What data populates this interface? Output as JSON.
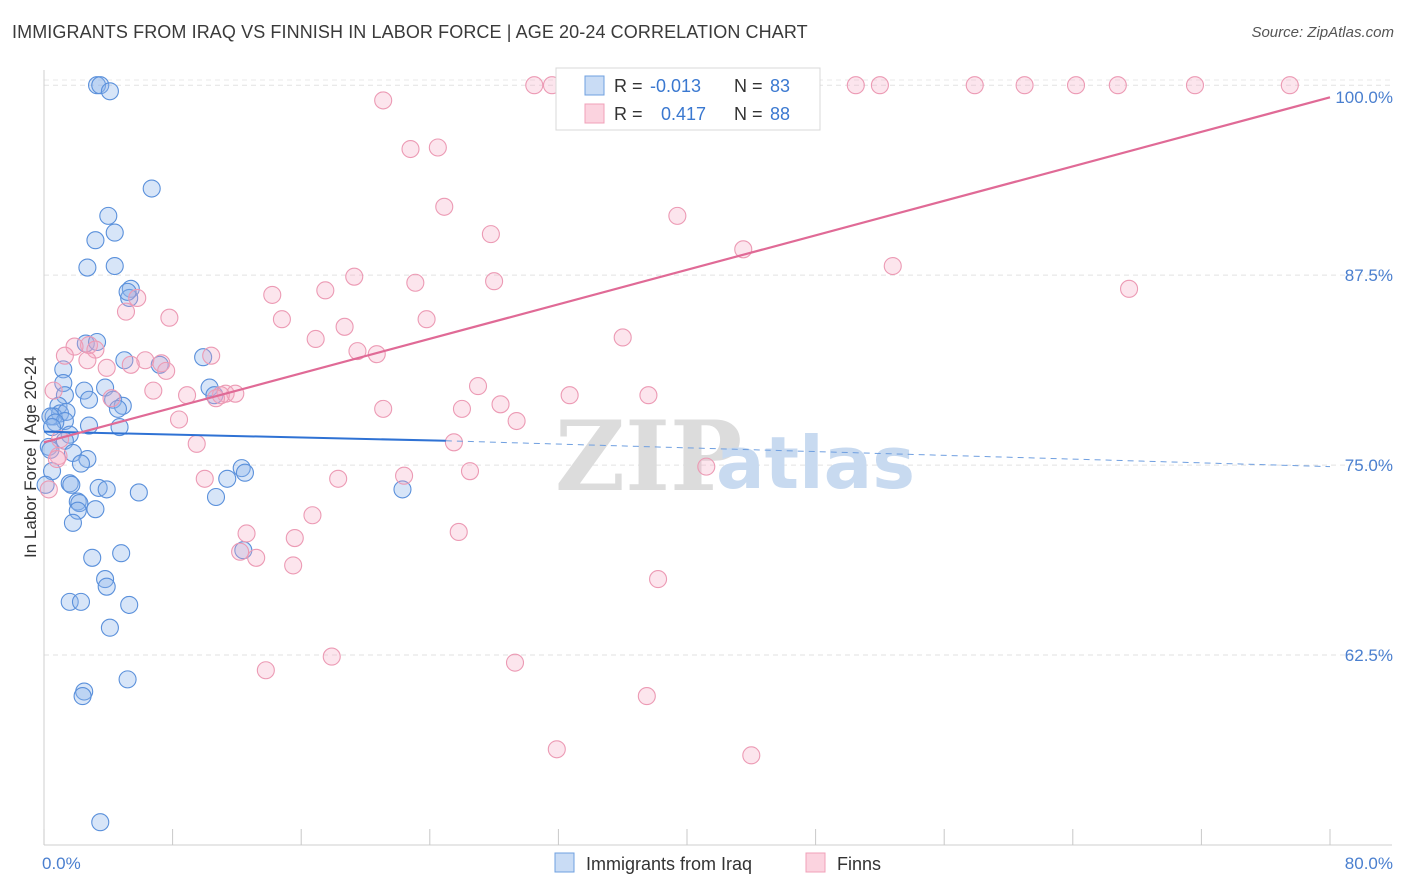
{
  "title": "IMMIGRANTS FROM IRAQ VS FINNISH IN LABOR FORCE | AGE 20-24 CORRELATION CHART",
  "source": "Source: ZipAtlas.com",
  "watermark": {
    "zip": "ZIP",
    "atlas": "atlas"
  },
  "legend_top": {
    "rows": [
      {
        "r_label": "R =",
        "r_value": "-0.013",
        "n_label": "N =",
        "n_value": "83",
        "color": "#6fa0e0"
      },
      {
        "r_label": "R =",
        "r_value": "0.417",
        "n_label": "N =",
        "n_value": "88",
        "color": "#f0a0b8"
      }
    ]
  },
  "legend_bottom": [
    {
      "label": "Immigrants from Iraq",
      "color": "#6fa0e0"
    },
    {
      "label": "Finns",
      "color": "#f0a0b8"
    }
  ],
  "chart_data": {
    "type": "scatter",
    "title": "IMMIGRANTS FROM IRAQ VS FINNISH IN LABOR FORCE | AGE 20-24 CORRELATION CHART",
    "xlabel": "",
    "ylabel": "In Labor Force | Age 20-24",
    "xlim": [
      0,
      80
    ],
    "ylim": [
      50,
      101
    ],
    "x_tick_labels": [
      "0.0%",
      "80.0%"
    ],
    "y_ticks": [
      62.5,
      75.0,
      87.5,
      100.0
    ],
    "y_tick_labels": [
      "62.5%",
      "75.0%",
      "87.5%",
      "100.0%"
    ],
    "grid": true,
    "series": [
      {
        "name": "Immigrants from Iraq",
        "color": "#6fa0e0",
        "trend": {
          "x": [
            0,
            25
          ],
          "y": [
            77.2,
            76.6
          ],
          "dashed_to_x": 80,
          "dashed_y_end": 74.9
        },
        "points": [
          [
            3.3,
            100.0
          ],
          [
            3.5,
            100.0
          ],
          [
            4.1,
            99.6
          ],
          [
            6.7,
            93.2
          ],
          [
            4.0,
            91.4
          ],
          [
            4.4,
            90.3
          ],
          [
            3.2,
            89.8
          ],
          [
            2.7,
            88.0
          ],
          [
            4.4,
            88.1
          ],
          [
            5.4,
            86.6
          ],
          [
            5.3,
            86.0
          ],
          [
            5.2,
            86.4
          ],
          [
            2.6,
            83.0
          ],
          [
            3.3,
            83.1
          ],
          [
            5.0,
            81.9
          ],
          [
            7.2,
            81.6
          ],
          [
            9.9,
            82.1
          ],
          [
            1.2,
            81.3
          ],
          [
            1.2,
            80.4
          ],
          [
            2.5,
            79.9
          ],
          [
            3.8,
            80.1
          ],
          [
            1.3,
            79.6
          ],
          [
            10.3,
            80.1
          ],
          [
            10.6,
            79.6
          ],
          [
            4.3,
            79.3
          ],
          [
            2.8,
            79.3
          ],
          [
            4.9,
            78.9
          ],
          [
            0.9,
            78.9
          ],
          [
            4.6,
            78.7
          ],
          [
            1.0,
            78.4
          ],
          [
            0.6,
            78.2
          ],
          [
            1.4,
            78.5
          ],
          [
            0.4,
            78.2
          ],
          [
            1.3,
            77.9
          ],
          [
            0.7,
            77.8
          ],
          [
            2.8,
            77.6
          ],
          [
            0.5,
            77.5
          ],
          [
            4.7,
            77.5
          ],
          [
            1.6,
            77.0
          ],
          [
            1.3,
            76.6
          ],
          [
            0.3,
            76.2
          ],
          [
            0.4,
            76.0
          ],
          [
            1.8,
            75.8
          ],
          [
            2.7,
            75.4
          ],
          [
            2.3,
            75.1
          ],
          [
            12.3,
            74.8
          ],
          [
            0.5,
            74.6
          ],
          [
            12.5,
            74.5
          ],
          [
            11.4,
            74.1
          ],
          [
            1.6,
            73.8
          ],
          [
            1.7,
            73.7
          ],
          [
            3.4,
            73.5
          ],
          [
            3.9,
            73.4
          ],
          [
            0.1,
            73.7
          ],
          [
            5.9,
            73.2
          ],
          [
            10.7,
            72.9
          ],
          [
            22.3,
            73.4
          ],
          [
            2.1,
            72.6
          ],
          [
            2.2,
            72.5
          ],
          [
            2.1,
            72.0
          ],
          [
            3.2,
            72.1
          ],
          [
            1.8,
            71.2
          ],
          [
            12.4,
            69.4
          ],
          [
            4.8,
            69.2
          ],
          [
            3.0,
            68.9
          ],
          [
            3.8,
            67.5
          ],
          [
            3.9,
            67.0
          ],
          [
            1.6,
            66.0
          ],
          [
            2.3,
            66.0
          ],
          [
            5.3,
            65.8
          ],
          [
            4.1,
            64.3
          ],
          [
            5.2,
            60.9
          ],
          [
            2.5,
            60.1
          ],
          [
            2.4,
            59.8
          ],
          [
            3.5,
            51.5
          ]
        ]
      },
      {
        "name": "Finns",
        "color": "#f0a0b8",
        "trend": {
          "x": [
            0,
            80
          ],
          "y": [
            76.5,
            99.2
          ]
        },
        "points": [
          [
            30.5,
            100.0
          ],
          [
            31.6,
            100.0
          ],
          [
            33.5,
            100.0
          ],
          [
            37.9,
            100.0
          ],
          [
            39.6,
            100.0
          ],
          [
            50.5,
            100.0
          ],
          [
            52.0,
            100.0
          ],
          [
            57.9,
            100.0
          ],
          [
            61.0,
            100.0
          ],
          [
            64.2,
            100.0
          ],
          [
            66.8,
            100.0
          ],
          [
            71.6,
            100.0
          ],
          [
            77.5,
            100.0
          ],
          [
            21.1,
            99.0
          ],
          [
            22.8,
            95.8
          ],
          [
            24.5,
            95.9
          ],
          [
            24.9,
            92.0
          ],
          [
            27.8,
            90.2
          ],
          [
            39.4,
            91.4
          ],
          [
            43.5,
            89.2
          ],
          [
            52.8,
            88.1
          ],
          [
            67.5,
            86.6
          ],
          [
            19.3,
            87.4
          ],
          [
            23.1,
            87.0
          ],
          [
            28.0,
            87.1
          ],
          [
            17.5,
            86.5
          ],
          [
            14.2,
            86.2
          ],
          [
            5.8,
            86.0
          ],
          [
            5.1,
            85.1
          ],
          [
            7.8,
            84.7
          ],
          [
            14.8,
            84.6
          ],
          [
            23.8,
            84.6
          ],
          [
            18.7,
            84.1
          ],
          [
            16.9,
            83.3
          ],
          [
            36.0,
            83.4
          ],
          [
            2.8,
            82.9
          ],
          [
            1.9,
            82.8
          ],
          [
            3.2,
            82.6
          ],
          [
            19.5,
            82.5
          ],
          [
            20.7,
            82.3
          ],
          [
            1.3,
            82.2
          ],
          [
            10.4,
            82.2
          ],
          [
            2.7,
            81.9
          ],
          [
            6.3,
            81.9
          ],
          [
            7.3,
            81.7
          ],
          [
            5.4,
            81.6
          ],
          [
            3.9,
            81.4
          ],
          [
            7.6,
            81.2
          ],
          [
            27.0,
            80.2
          ],
          [
            0.6,
            79.9
          ],
          [
            6.8,
            79.9
          ],
          [
            11.3,
            79.7
          ],
          [
            11.9,
            79.7
          ],
          [
            8.9,
            79.6
          ],
          [
            11.0,
            79.6
          ],
          [
            32.7,
            79.6
          ],
          [
            37.6,
            79.6
          ],
          [
            10.7,
            79.4
          ],
          [
            4.2,
            79.4
          ],
          [
            28.4,
            79.0
          ],
          [
            21.1,
            78.7
          ],
          [
            26.0,
            78.7
          ],
          [
            8.4,
            78.0
          ],
          [
            29.4,
            77.9
          ],
          [
            1.0,
            76.7
          ],
          [
            9.5,
            76.4
          ],
          [
            25.5,
            76.5
          ],
          [
            0.9,
            75.6
          ],
          [
            0.8,
            75.4
          ],
          [
            41.2,
            74.9
          ],
          [
            26.5,
            74.6
          ],
          [
            22.4,
            74.3
          ],
          [
            10.0,
            74.1
          ],
          [
            18.3,
            74.1
          ],
          [
            0.3,
            73.4
          ],
          [
            16.7,
            71.7
          ],
          [
            25.8,
            70.6
          ],
          [
            12.6,
            70.5
          ],
          [
            15.6,
            70.2
          ],
          [
            12.2,
            69.3
          ],
          [
            13.2,
            68.9
          ],
          [
            15.5,
            68.4
          ],
          [
            38.2,
            67.5
          ],
          [
            17.9,
            62.4
          ],
          [
            29.3,
            62.0
          ],
          [
            13.8,
            61.5
          ],
          [
            37.5,
            59.8
          ],
          [
            31.9,
            56.3
          ],
          [
            44.0,
            55.9
          ]
        ]
      }
    ]
  }
}
